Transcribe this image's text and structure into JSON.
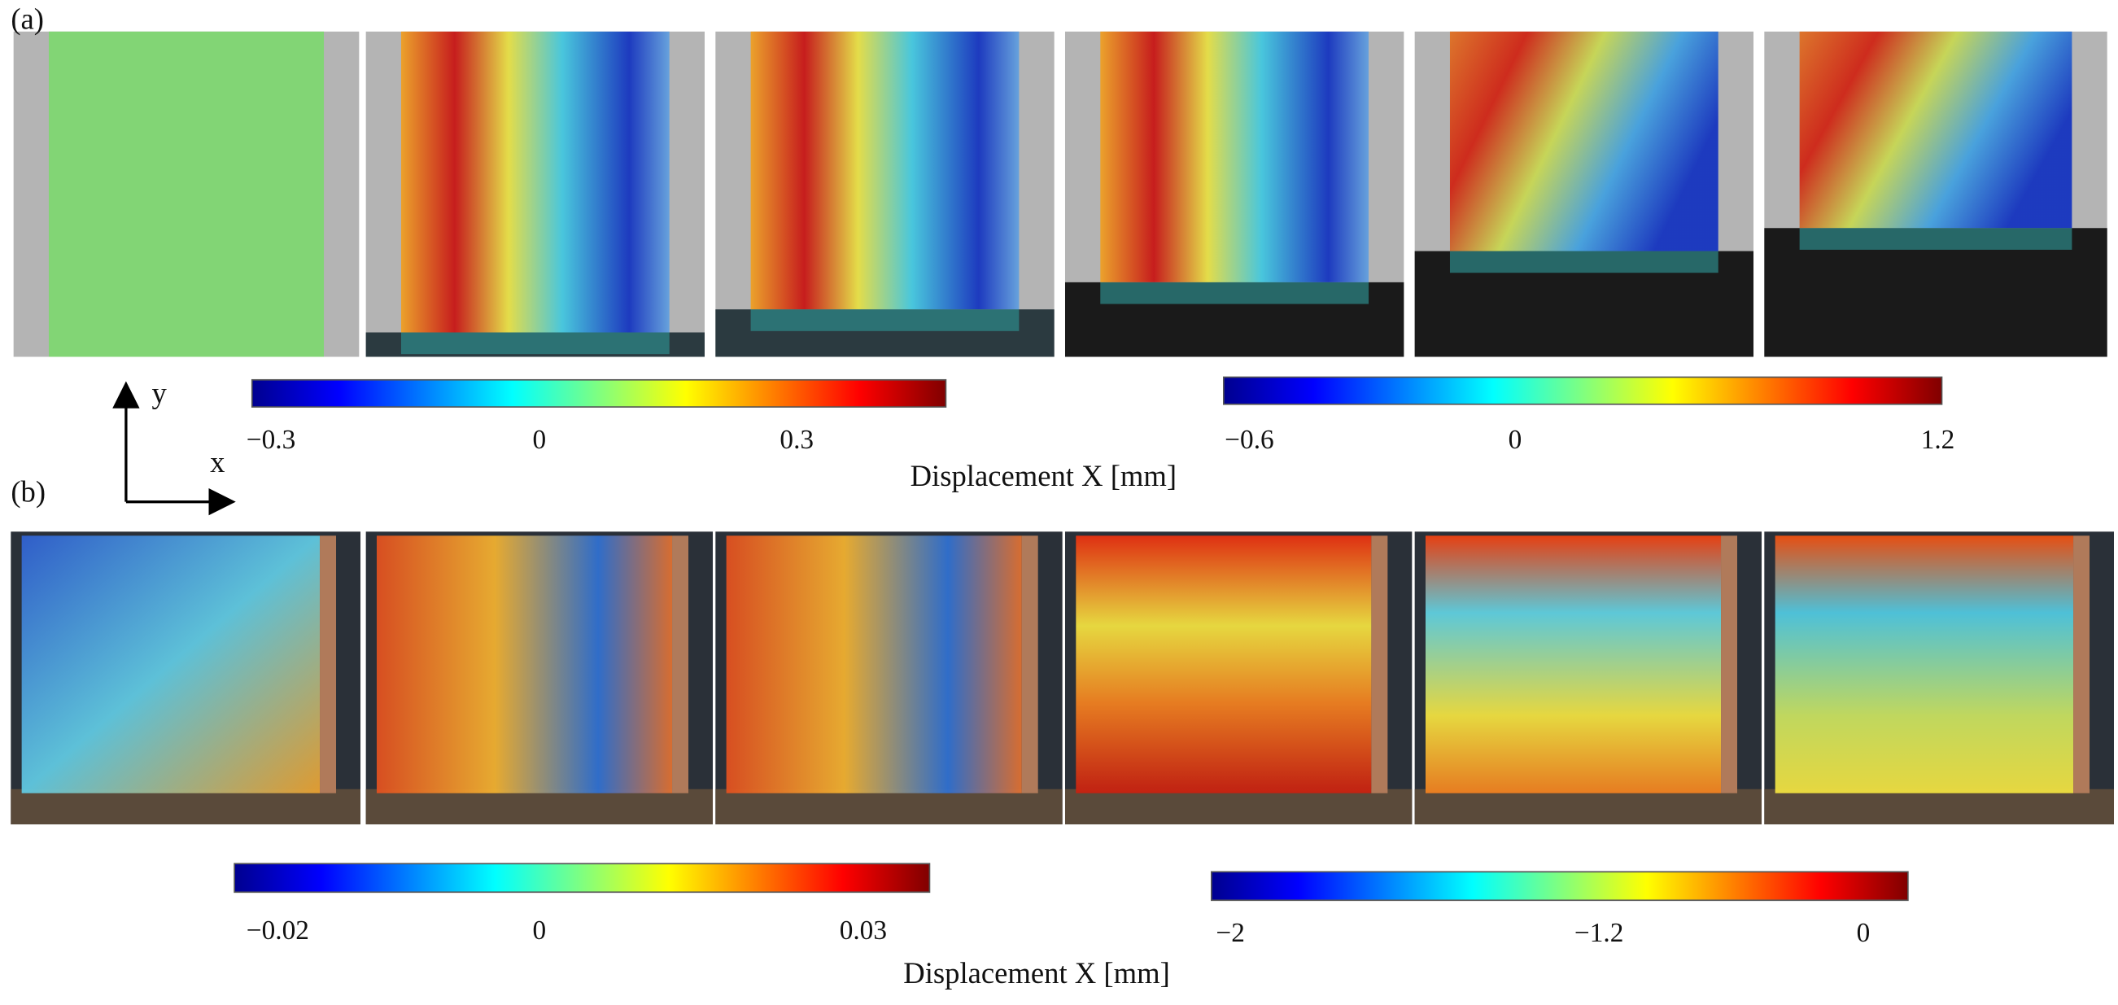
{
  "panel_a": {
    "label": "(a)",
    "colorbars": [
      {
        "ticks": [
          "−0.3",
          "0",
          "0.3"
        ]
      },
      {
        "ticks": [
          "−0.6",
          "0",
          "1.2"
        ]
      }
    ],
    "caption": "Displacement X [mm]"
  },
  "panel_b": {
    "label": "(b)",
    "colorbars": [
      {
        "ticks": [
          "−0.02",
          "0",
          "0.03"
        ]
      },
      {
        "ticks": [
          "−2",
          "−1.2",
          "0"
        ]
      }
    ],
    "caption": "Displacement X [mm]"
  },
  "axes": {
    "x": "x",
    "y": "y"
  }
}
